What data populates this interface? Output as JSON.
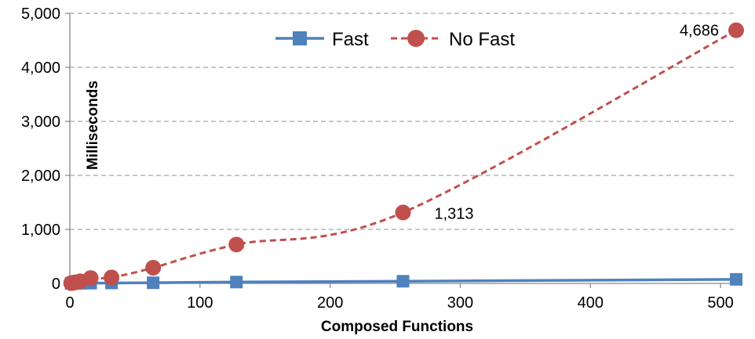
{
  "chart_data": {
    "type": "line",
    "title": "",
    "xlabel": "Composed Functions",
    "ylabel": "Milliseconds",
    "xlim": [
      0,
      512
    ],
    "ylim": [
      0,
      5000
    ],
    "xticks": [
      0,
      100,
      200,
      300,
      400,
      500
    ],
    "xtick_labels": [
      "0",
      "100",
      "200",
      "300",
      "400",
      "500"
    ],
    "yticks": [
      0,
      1000,
      2000,
      3000,
      4000,
      5000
    ],
    "ytick_labels": [
      "0",
      "1,000",
      "2,000",
      "3,000",
      "4,000",
      "5,000"
    ],
    "grid": "horizontal-dashed",
    "legend": "top-center",
    "series": [
      {
        "name": "Fast",
        "color": "#4f81bd",
        "marker": "square",
        "line_style": "solid",
        "x": [
          1,
          2,
          4,
          8,
          16,
          32,
          64,
          128,
          256,
          512
        ],
        "y": [
          1,
          1,
          2,
          3,
          5,
          8,
          12,
          25,
          40,
          75
        ]
      },
      {
        "name": "No Fast",
        "color": "#c0504d",
        "marker": "circle",
        "line_style": "dashed",
        "x": [
          1,
          2,
          4,
          8,
          16,
          32,
          64,
          128,
          256,
          512
        ],
        "y": [
          5,
          10,
          20,
          40,
          100,
          110,
          290,
          720,
          1313,
          4686
        ]
      }
    ],
    "annotations": [
      {
        "series": "No Fast",
        "x": 256,
        "y": 1313,
        "text": "1,313"
      },
      {
        "series": "No Fast",
        "x": 512,
        "y": 4686,
        "text": "4,686"
      }
    ]
  }
}
